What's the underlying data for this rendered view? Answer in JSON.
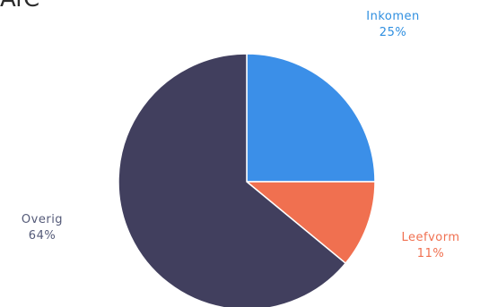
{
  "chart_data": {
    "type": "pie",
    "title": "AfC",
    "slices": [
      {
        "label": "Inkomen",
        "value": 25,
        "value_label": "25%",
        "color": "#3b8fe8",
        "label_color": "#2f8fe0"
      },
      {
        "label": "Leefvorm",
        "value": 11,
        "value_label": "11%",
        "color": "#f07050",
        "label_color": "#f07050"
      },
      {
        "label": "Overig",
        "value": 64,
        "value_label": "64%",
        "color": "#413f5e",
        "label_color": "#545a78"
      }
    ],
    "start_angle": "12 o'clock",
    "direction": "clockwise",
    "legend": "none, labels placed next to slices"
  }
}
